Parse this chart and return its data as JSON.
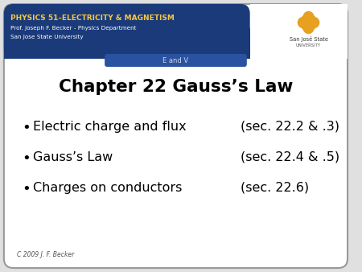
{
  "title": "Chapter 22 Gauss’s Law",
  "bullet_items": [
    [
      "Electric charge and flux",
      "(sec. 22.2 & .3)"
    ],
    [
      "Gauss’s Law",
      "(sec. 22.4 & .5)"
    ],
    [
      "Charges on conductors",
      "(sec. 22.6)"
    ]
  ],
  "header_line1": "PHYSICS 51–ELECTRICITY & MAGNETISM",
  "header_line2": "Prof. Joseph F. Becker - Physics Department",
  "header_line3": "San Jose State University",
  "tab_label": "E and V",
  "footer": "C 2009 J. F. Becker",
  "header_bg": "#1a3a7a",
  "header_text_color1": "#f5c842",
  "header_text_color2": "#ffffff",
  "tab_bg": "#2a52a0",
  "tab_text_color": "#d0d8f0",
  "body_bg": "#ffffff",
  "border_color": "#999999",
  "title_color": "#000000",
  "body_text_color": "#000000",
  "footer_color": "#555555",
  "logo_color": "#e8a020",
  "logo_text1": "San José State",
  "logo_text2": "UNIVERSITY"
}
